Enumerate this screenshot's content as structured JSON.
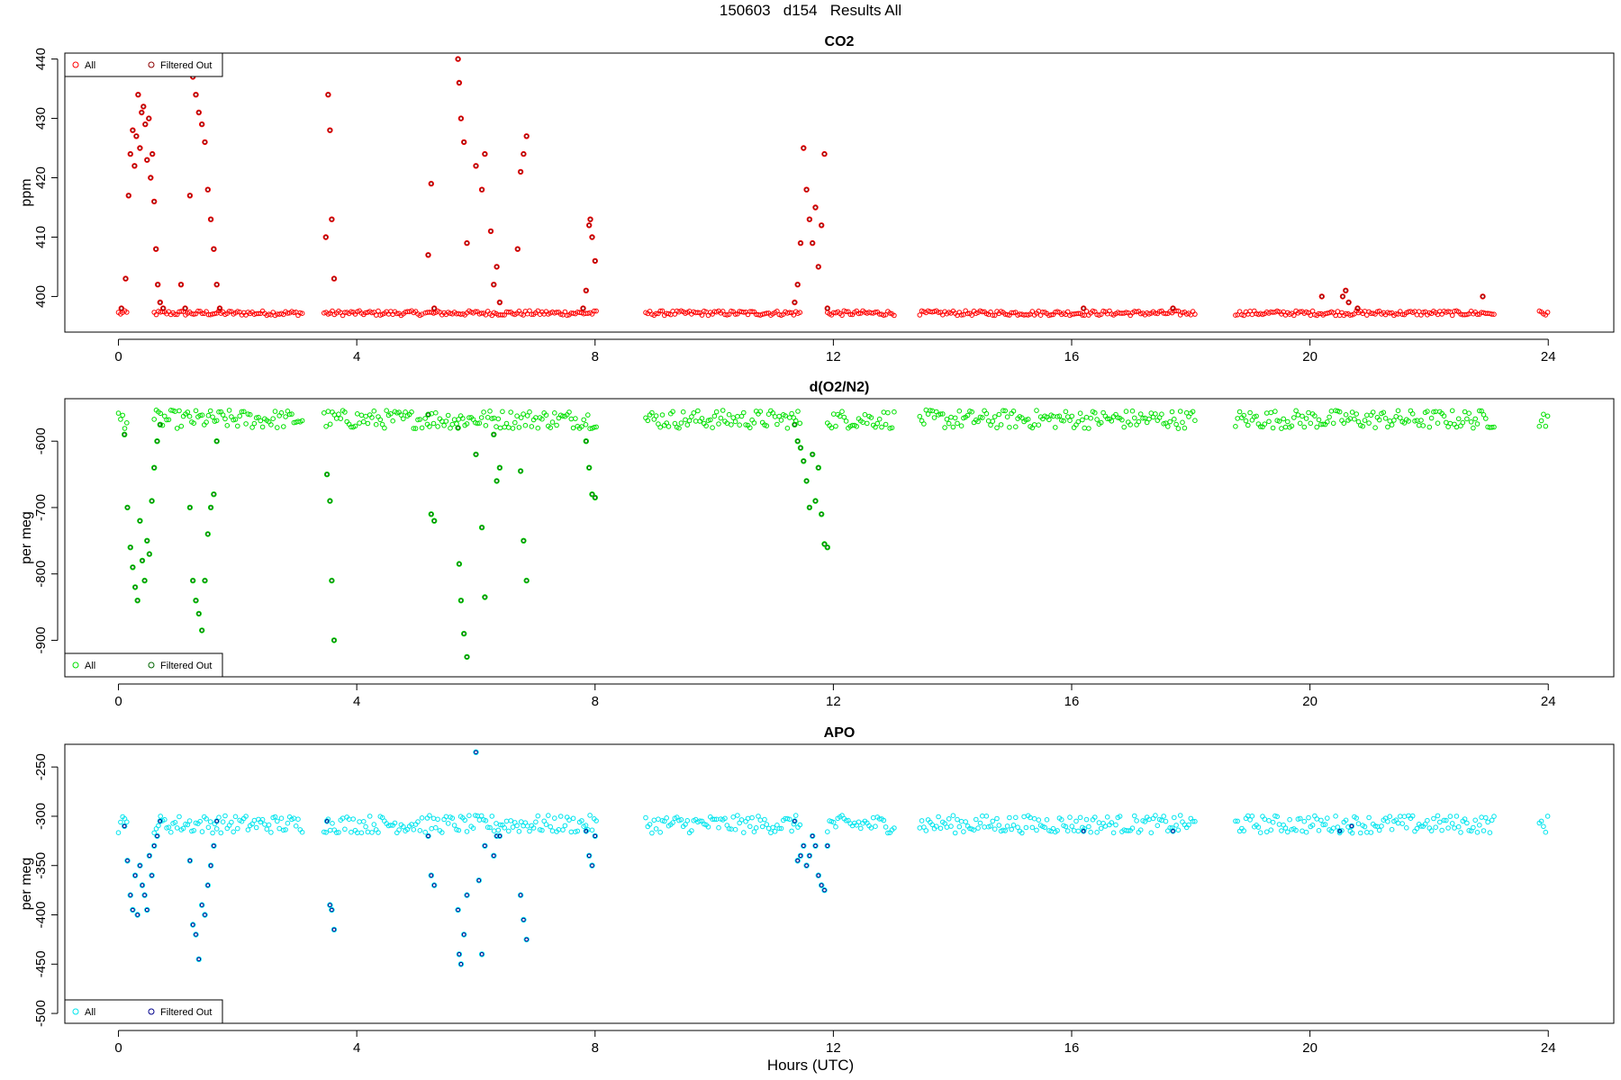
{
  "header": {
    "title": "150603   d154   Results All"
  },
  "xaxis": {
    "title": "Hours (UTC)",
    "ticks": [
      0,
      4,
      8,
      12,
      16,
      20,
      24
    ],
    "xlim": [
      -0.9,
      25.1
    ]
  },
  "colors": {
    "co2_all": "#ff0000",
    "co2_filtered": "#8b0000",
    "o2_all": "#00e000",
    "o2_filtered": "#006400",
    "apo_all": "#00e5ee",
    "apo_filtered": "#00008b"
  },
  "chart_data": [
    {
      "type": "scatter",
      "title": "CO2",
      "ylabel": "ppm",
      "ylim": [
        394,
        441
      ],
      "yticks": [
        400,
        410,
        420,
        430,
        440
      ],
      "legend": {
        "placement": "top-left",
        "entries": [
          "All",
          "Filtered Out"
        ]
      },
      "baseline_segments": [
        [
          0.0,
          0.15
        ],
        [
          0.6,
          3.1
        ],
        [
          3.45,
          5.1
        ],
        [
          5.15,
          8.05
        ],
        [
          8.85,
          11.45
        ],
        [
          11.9,
          13.05
        ],
        [
          13.45,
          18.1
        ],
        [
          18.75,
          23.1
        ],
        [
          23.85,
          24.0
        ]
      ],
      "baseline_value": 397.2,
      "series": [
        {
          "name": "Filtered Out",
          "x": [
            0.05,
            0.12,
            0.17,
            0.2,
            0.24,
            0.27,
            0.3,
            0.33,
            0.36,
            0.39,
            0.42,
            0.45,
            0.48,
            0.51,
            0.54,
            0.57,
            0.6,
            0.63,
            0.66,
            0.7,
            0.75,
            1.05,
            1.12,
            1.2,
            1.25,
            1.3,
            1.35,
            1.4,
            1.45,
            1.5,
            1.55,
            1.6,
            1.65,
            1.7,
            3.48,
            3.52,
            3.55,
            3.58,
            3.62,
            5.2,
            5.25,
            5.3,
            5.7,
            5.72,
            5.75,
            5.8,
            5.85,
            6.0,
            6.1,
            6.15,
            6.25,
            6.3,
            6.35,
            6.4,
            6.7,
            6.75,
            6.8,
            6.85,
            7.8,
            7.85,
            7.9,
            7.92,
            7.95,
            8.0,
            11.35,
            11.4,
            11.45,
            11.5,
            11.55,
            11.6,
            11.65,
            11.7,
            11.75,
            11.8,
            11.85,
            11.9,
            16.2,
            17.7,
            20.2,
            20.55,
            20.6,
            20.65,
            20.8,
            22.9
          ],
          "y": [
            398,
            403,
            417,
            424,
            428,
            422,
            427,
            434,
            425,
            431,
            432,
            429,
            423,
            430,
            420,
            424,
            416,
            408,
            402,
            399,
            398,
            402,
            398,
            417,
            437,
            434,
            431,
            429,
            426,
            418,
            413,
            408,
            402,
            398,
            410,
            434,
            428,
            413,
            403,
            407,
            419,
            398,
            440,
            436,
            430,
            426,
            409,
            422,
            418,
            424,
            411,
            402,
            405,
            399,
            408,
            421,
            424,
            427,
            398,
            401,
            412,
            413,
            410,
            406,
            399,
            402,
            409,
            425,
            418,
            413,
            409,
            415,
            405,
            412,
            424,
            398,
            398,
            398,
            400,
            400,
            401,
            399,
            398,
            400
          ]
        }
      ]
    },
    {
      "type": "scatter",
      "title": "d(O2/N2)",
      "ylabel": "per meg",
      "ylim": [
        -955,
        -536
      ],
      "yticks": [
        -600,
        -700,
        -800,
        -900
      ],
      "legend": {
        "placement": "bottom-left",
        "entries": [
          "All",
          "Filtered Out"
        ]
      },
      "baseline_segments": [
        [
          0.0,
          0.15
        ],
        [
          0.6,
          3.1
        ],
        [
          3.45,
          5.1
        ],
        [
          5.15,
          8.05
        ],
        [
          8.85,
          11.45
        ],
        [
          11.9,
          13.05
        ],
        [
          13.45,
          18.1
        ],
        [
          18.75,
          23.1
        ],
        [
          23.85,
          24.0
        ]
      ],
      "baseline_value": -567,
      "series": [
        {
          "name": "Filtered Out",
          "x": [
            0.1,
            0.15,
            0.2,
            0.24,
            0.28,
            0.32,
            0.36,
            0.4,
            0.44,
            0.48,
            0.52,
            0.56,
            0.6,
            0.65,
            0.7,
            1.2,
            1.25,
            1.3,
            1.35,
            1.4,
            1.45,
            1.5,
            1.55,
            1.6,
            1.65,
            3.5,
            3.55,
            3.58,
            3.62,
            5.2,
            5.25,
            5.3,
            5.7,
            5.72,
            5.75,
            5.8,
            5.85,
            6.0,
            6.1,
            6.15,
            6.3,
            6.35,
            6.4,
            6.75,
            6.8,
            6.85,
            7.85,
            7.9,
            7.95,
            8.0,
            11.35,
            11.4,
            11.45,
            11.5,
            11.55,
            11.6,
            11.65,
            11.7,
            11.75,
            11.8,
            11.85,
            11.9
          ],
          "y": [
            -590,
            -700,
            -760,
            -790,
            -820,
            -840,
            -720,
            -780,
            -810,
            -750,
            -770,
            -690,
            -640,
            -600,
            -575,
            -700,
            -810,
            -840,
            -860,
            -885,
            -810,
            -740,
            -700,
            -680,
            -600,
            -650,
            -690,
            -810,
            -900,
            -560,
            -710,
            -720,
            -580,
            -785,
            -840,
            -890,
            -925,
            -620,
            -730,
            -835,
            -590,
            -660,
            -640,
            -645,
            -750,
            -810,
            -600,
            -640,
            -680,
            -685,
            -575,
            -600,
            -610,
            -630,
            -660,
            -700,
            -620,
            -690,
            -640,
            -710,
            -755,
            -760
          ]
        }
      ]
    },
    {
      "type": "scatter",
      "title": "APO",
      "ylabel": "per meg",
      "ylim": [
        -510,
        -227
      ],
      "yticks": [
        -250,
        -300,
        -350,
        -400,
        -450,
        -500
      ],
      "legend": {
        "placement": "bottom-left",
        "entries": [
          "All",
          "Filtered Out"
        ]
      },
      "baseline_segments": [
        [
          0.0,
          0.15
        ],
        [
          0.6,
          3.1
        ],
        [
          3.45,
          5.1
        ],
        [
          5.15,
          8.05
        ],
        [
          8.85,
          11.45
        ],
        [
          11.9,
          13.05
        ],
        [
          13.45,
          18.1
        ],
        [
          18.75,
          23.1
        ],
        [
          23.85,
          24.0
        ]
      ],
      "baseline_value": -308,
      "series": [
        {
          "name": "Filtered Out",
          "x": [
            0.1,
            0.15,
            0.2,
            0.24,
            0.28,
            0.32,
            0.36,
            0.4,
            0.44,
            0.48,
            0.52,
            0.56,
            0.6,
            0.65,
            0.7,
            1.2,
            1.25,
            1.3,
            1.35,
            1.4,
            1.45,
            1.5,
            1.55,
            1.6,
            1.65,
            3.5,
            3.55,
            3.58,
            3.62,
            5.2,
            5.25,
            5.3,
            5.7,
            5.72,
            5.75,
            5.8,
            5.85,
            6.0,
            6.05,
            6.1,
            6.15,
            6.3,
            6.35,
            6.4,
            6.75,
            6.8,
            6.85,
            7.85,
            7.9,
            7.95,
            8.0,
            11.35,
            11.4,
            11.45,
            11.5,
            11.55,
            11.6,
            11.65,
            11.7,
            11.75,
            11.8,
            11.85,
            11.9,
            16.2,
            17.7,
            20.5,
            20.7
          ],
          "y": [
            -310,
            -345,
            -380,
            -395,
            -360,
            -400,
            -350,
            -370,
            -380,
            -395,
            -340,
            -360,
            -330,
            -320,
            -305,
            -345,
            -410,
            -420,
            -445,
            -390,
            -400,
            -370,
            -350,
            -330,
            -305,
            -305,
            -390,
            -395,
            -415,
            -320,
            -360,
            -370,
            -395,
            -440,
            -450,
            -420,
            -380,
            -235,
            -365,
            -440,
            -330,
            -340,
            -320,
            -320,
            -380,
            -405,
            -425,
            -315,
            -340,
            -350,
            -320,
            -305,
            -345,
            -340,
            -330,
            -350,
            -340,
            -320,
            -330,
            -360,
            -370,
            -375,
            -330,
            -315,
            -315,
            -315,
            -310
          ]
        }
      ]
    }
  ]
}
